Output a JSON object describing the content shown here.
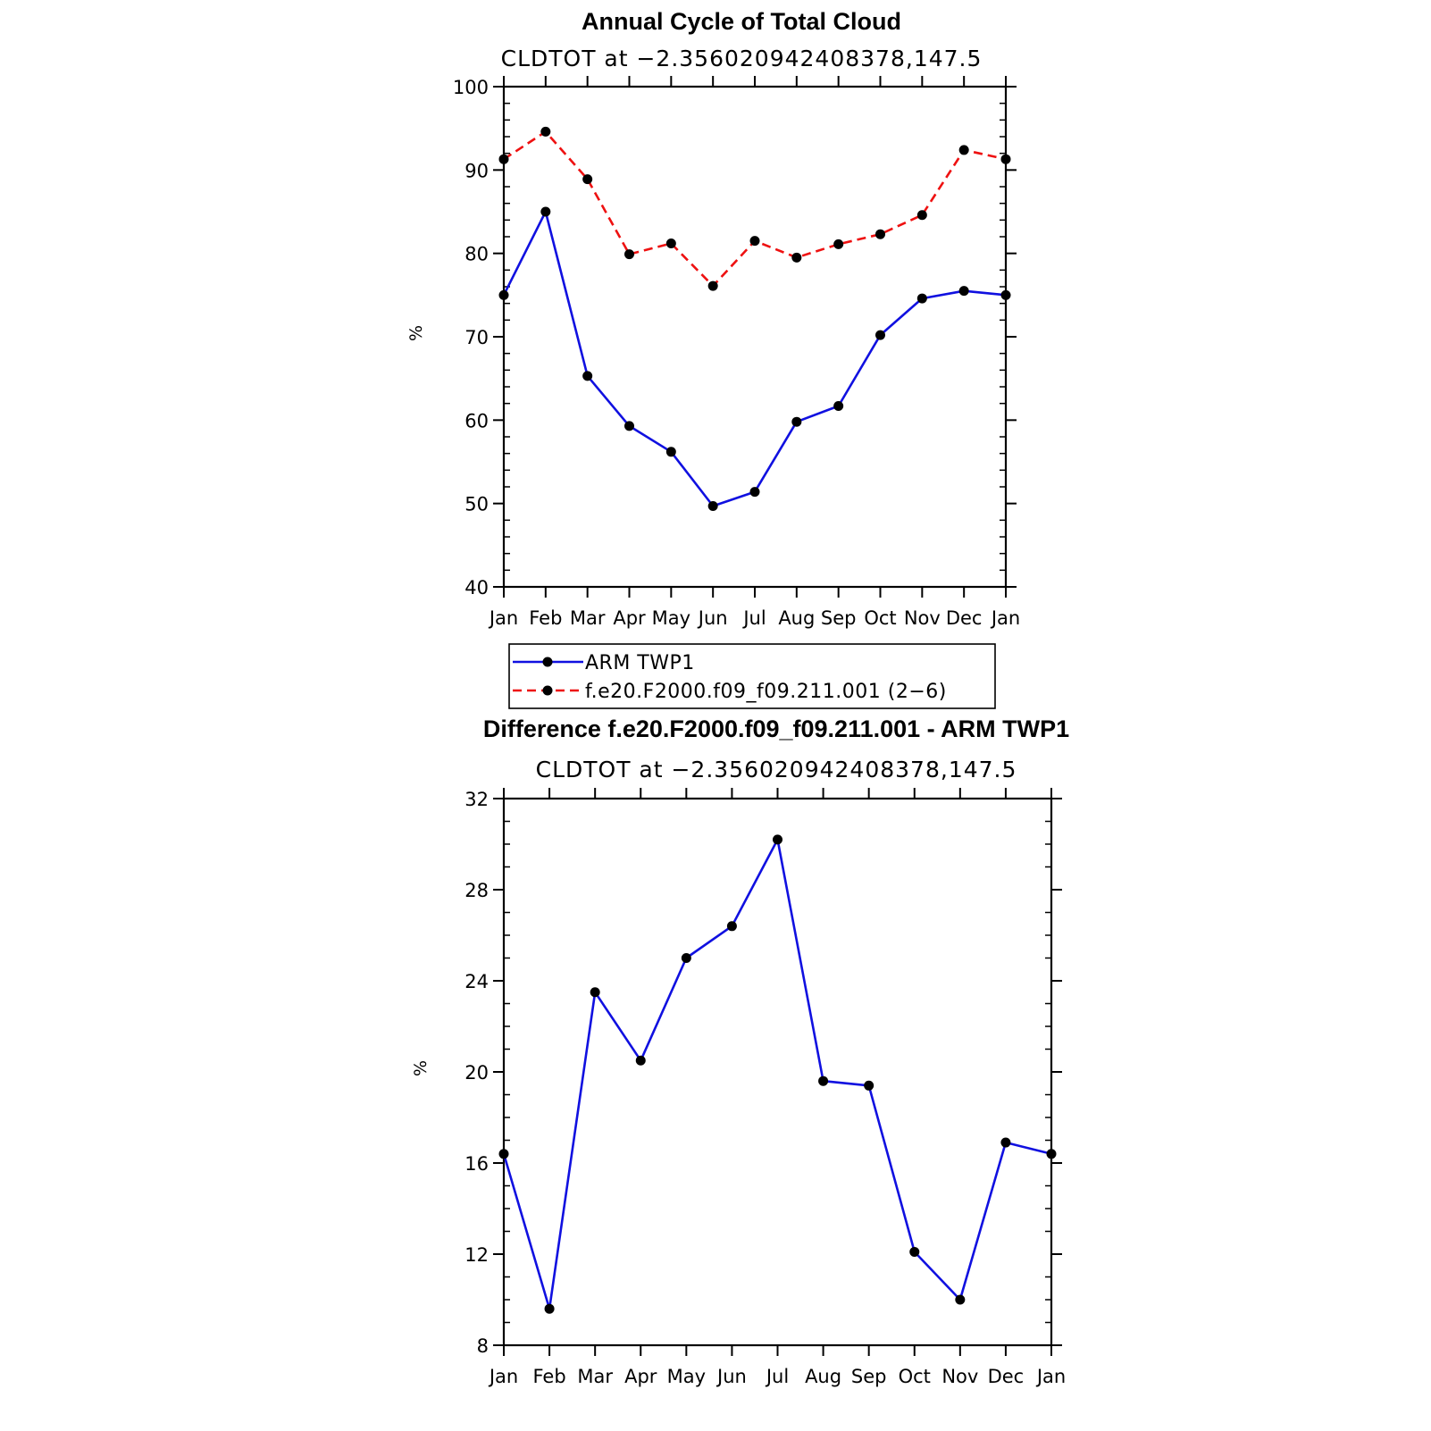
{
  "chart_data": [
    {
      "type": "line",
      "title": "Annual Cycle of Total Cloud",
      "subtitle": "CLDTOT at −2.356020942408378,147.5",
      "ylabel": "%",
      "categories": [
        "Jan",
        "Feb",
        "Mar",
        "Apr",
        "May",
        "Jun",
        "Jul",
        "Aug",
        "Sep",
        "Oct",
        "Nov",
        "Dec",
        "Jan"
      ],
      "ylim": [
        40,
        100
      ],
      "yticks": [
        "40",
        "50",
        "60",
        "70",
        "80",
        "90",
        "100"
      ],
      "legend": "below",
      "series": [
        {
          "name": "ARM TWP1",
          "color": "#1010e0",
          "style": "solid",
          "values": [
            75.0,
            85.0,
            65.3,
            59.3,
            56.2,
            49.7,
            51.4,
            59.8,
            61.7,
            70.2,
            74.6,
            75.5,
            75.0
          ]
        },
        {
          "name": "f.e20.F2000.f09_f09.211.001 (2−6)",
          "color": "#ee1111",
          "style": "dashed",
          "values": [
            91.3,
            94.6,
            88.9,
            79.9,
            81.2,
            76.1,
            81.5,
            79.5,
            81.1,
            82.3,
            84.6,
            92.4,
            91.3
          ]
        }
      ]
    },
    {
      "type": "line",
      "title": "Difference f.e20.F2000.f09_f09.211.001 - ARM TWP1",
      "subtitle": "CLDTOT at −2.356020942408378,147.5",
      "ylabel": "%",
      "categories": [
        "Jan",
        "Feb",
        "Mar",
        "Apr",
        "May",
        "Jun",
        "Jul",
        "Aug",
        "Sep",
        "Oct",
        "Nov",
        "Dec",
        "Jan"
      ],
      "ylim": [
        8,
        32
      ],
      "yticks": [
        "8",
        "12",
        "16",
        "20",
        "24",
        "28",
        "32"
      ],
      "series": [
        {
          "color": "#1010e0",
          "style": "solid",
          "values": [
            16.4,
            9.6,
            23.5,
            20.5,
            25.0,
            26.4,
            30.2,
            19.6,
            19.4,
            12.1,
            10.0,
            16.9,
            16.4
          ]
        }
      ]
    }
  ]
}
